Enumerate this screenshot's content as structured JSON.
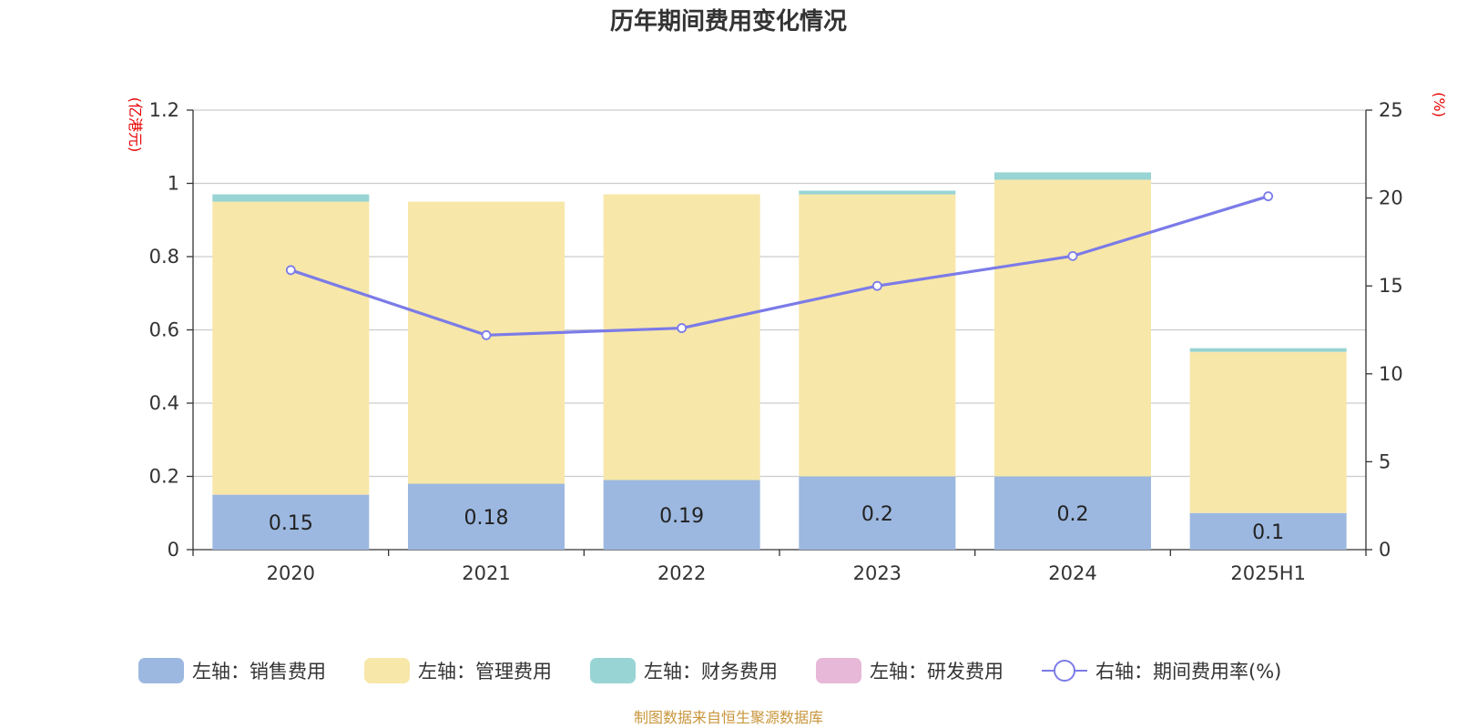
{
  "chart_data": {
    "type": "bar",
    "stacked": true,
    "title": "历年期间费用变化情况",
    "categories": [
      "2020",
      "2021",
      "2022",
      "2023",
      "2024",
      "2025H1"
    ],
    "left_axis": {
      "unit": "(亿港元)",
      "ylim": [
        0,
        1.2
      ],
      "ticks": [
        "0",
        "0.2",
        "0.4",
        "0.6",
        "0.8",
        "1",
        "1.2"
      ]
    },
    "right_axis": {
      "unit": "(%)",
      "ylim": [
        0,
        25
      ],
      "ticks": [
        "0",
        "5",
        "10",
        "15",
        "20",
        "25"
      ]
    },
    "series": [
      {
        "name": "左轴：销售费用",
        "axis": "left",
        "color": "#9cb8e0",
        "values": [
          0.15,
          0.18,
          0.19,
          0.2,
          0.2,
          0.1
        ],
        "labels": [
          "0.15",
          "0.18",
          "0.19",
          "0.2",
          "0.2",
          "0.1"
        ]
      },
      {
        "name": "左轴：管理费用",
        "axis": "left",
        "color": "#f7e7a9",
        "values": [
          0.8,
          0.77,
          0.78,
          0.77,
          0.81,
          0.44
        ]
      },
      {
        "name": "左轴：财务费用",
        "axis": "left",
        "color": "#98d4d4",
        "values": [
          0.02,
          0.0,
          0.0,
          0.01,
          0.02,
          0.01
        ]
      },
      {
        "name": "左轴：研发费用",
        "axis": "left",
        "color": "#e8b8d8",
        "values": [
          0,
          0,
          0,
          0,
          0,
          0
        ]
      },
      {
        "name": "右轴：期间费用率(%)",
        "axis": "right",
        "type": "line",
        "color": "#7b7be8",
        "values": [
          15.9,
          12.2,
          12.6,
          15.0,
          16.7,
          20.1
        ]
      }
    ],
    "grid": true,
    "legend_position": "bottom"
  },
  "source": "制图数据来自恒生聚源数据库"
}
